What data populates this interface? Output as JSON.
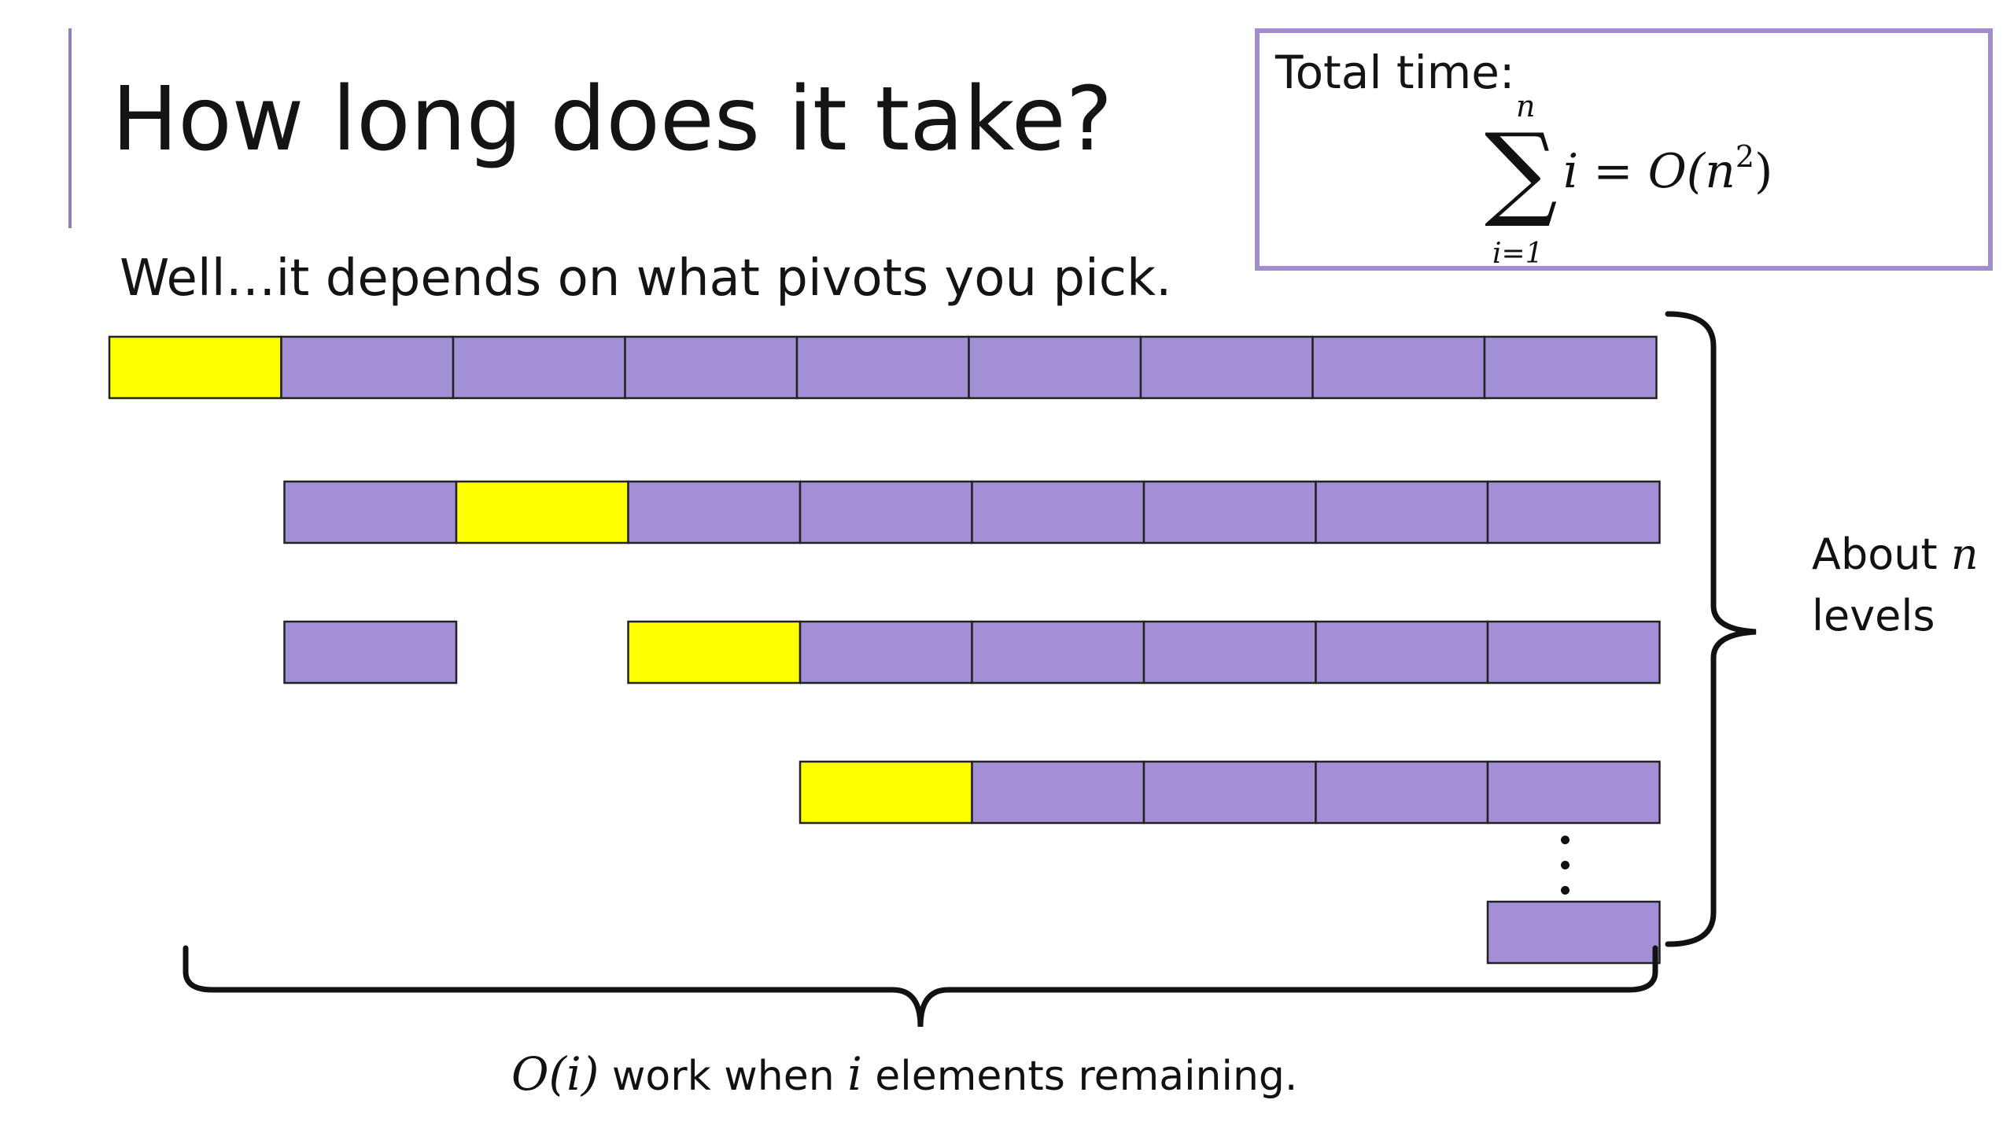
{
  "slide": {
    "title": "How long does it take?",
    "subtitle": "Well…it depends on what pivots you pick."
  },
  "total_box": {
    "label": "Total time:",
    "sum_upper": "n",
    "sum_lower": "i=1",
    "sum_symbol": "∑",
    "summand": "i = O(n",
    "exponent": "2",
    "close": ")"
  },
  "levels": {
    "prefix": "About ",
    "var": "n",
    "suffix": "levels"
  },
  "work": {
    "big_o": "O(i)",
    "middle": " work when ",
    "var": "i",
    "suffix": " elements remaining."
  },
  "rows": [
    {
      "cells": [
        "pivot",
        "element",
        "element",
        "element",
        "element",
        "element",
        "element",
        "element",
        "element"
      ],
      "start": 0,
      "gaps": []
    },
    {
      "cells": [
        "element",
        "pivot",
        "element",
        "element",
        "element",
        "element",
        "element",
        "element"
      ],
      "start": 1,
      "gaps": []
    },
    {
      "cells": [
        "element",
        "gap",
        "pivot",
        "element",
        "element",
        "element",
        "element",
        "element"
      ],
      "start": 1,
      "gaps": [
        1
      ]
    },
    {
      "cells": [
        "pivot",
        "element",
        "element",
        "element",
        "element"
      ],
      "start": 4,
      "gaps": []
    },
    {
      "cells": [
        "element"
      ],
      "start": 8,
      "gaps": []
    }
  ],
  "colors": {
    "pivot": "#ffff00",
    "element": "#a38fd5",
    "stroke": "#222222",
    "accent": "#8f7fc0",
    "box_border": "#a08dd0"
  }
}
